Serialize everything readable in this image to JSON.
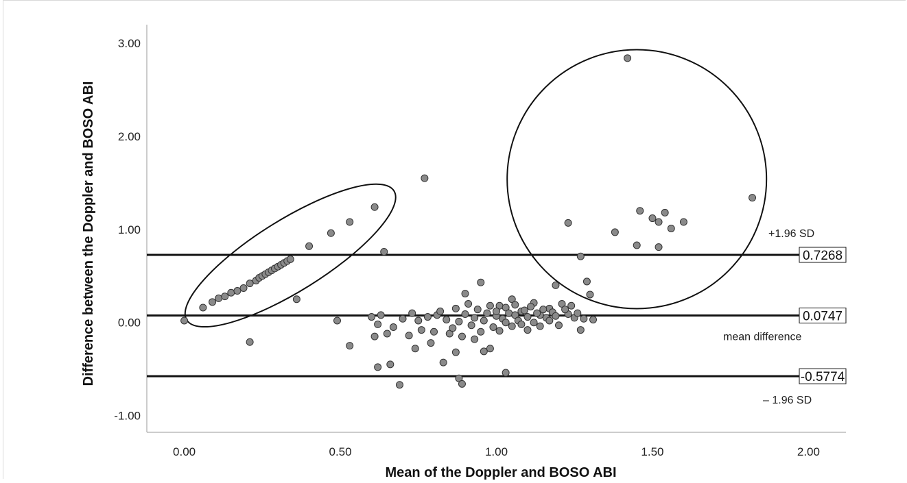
{
  "chart_data": {
    "type": "scatter",
    "title": "",
    "xlabel": "Mean of the Doppler and BOSO ABI",
    "ylabel": "Difference between the Doppler and BOSO ABI",
    "xlim": [
      -0.12,
      2.12
    ],
    "ylim": [
      -1.18,
      3.2
    ],
    "x_ticks": [
      "0.00",
      "0.50",
      "1.00",
      "1.50",
      "2.00"
    ],
    "y_ticks": [
      "-1.00",
      "0.00",
      "1.00",
      "2.00",
      "3.00"
    ],
    "grid": false,
    "reference_lines": [
      {
        "y": 0.7268,
        "label": "0.7268",
        "annotation": "+1.96 SD"
      },
      {
        "y": 0.0747,
        "label": "0.0747",
        "annotation": "mean difference"
      },
      {
        "y": -0.5774,
        "label": "-0.5774",
        "annotation": "– 1.96 SD"
      }
    ],
    "highlight_shapes": [
      {
        "type": "ellipse",
        "cx": 0.34,
        "cy": 0.72,
        "rx": 0.36,
        "ry": 0.18,
        "rotation_deg": -32
      },
      {
        "type": "circle",
        "cx": 1.45,
        "cy": 1.54
      }
    ],
    "points": [
      [
        0.0,
        0.02
      ],
      [
        0.06,
        0.16
      ],
      [
        0.09,
        0.22
      ],
      [
        0.11,
        0.26
      ],
      [
        0.13,
        0.28
      ],
      [
        0.15,
        0.32
      ],
      [
        0.17,
        0.34
      ],
      [
        0.19,
        0.37
      ],
      [
        0.21,
        0.42
      ],
      [
        0.23,
        0.45
      ],
      [
        0.24,
        0.48
      ],
      [
        0.25,
        0.5
      ],
      [
        0.26,
        0.52
      ],
      [
        0.27,
        0.54
      ],
      [
        0.28,
        0.56
      ],
      [
        0.29,
        0.58
      ],
      [
        0.3,
        0.6
      ],
      [
        0.31,
        0.62
      ],
      [
        0.32,
        0.64
      ],
      [
        0.33,
        0.66
      ],
      [
        0.34,
        0.68
      ],
      [
        0.4,
        0.82
      ],
      [
        0.47,
        0.96
      ],
      [
        0.53,
        1.08
      ],
      [
        0.61,
        1.24
      ],
      [
        0.77,
        1.55
      ],
      [
        0.21,
        -0.21
      ],
      [
        0.36,
        0.25
      ],
      [
        0.49,
        0.02
      ],
      [
        0.64,
        0.76
      ],
      [
        0.53,
        -0.25
      ],
      [
        0.61,
        -0.15
      ],
      [
        0.62,
        -0.48
      ],
      [
        0.66,
        -0.45
      ],
      [
        0.69,
        -0.67
      ],
      [
        0.74,
        -0.28
      ],
      [
        0.79,
        -0.22
      ],
      [
        0.81,
        0.08
      ],
      [
        0.83,
        -0.43
      ],
      [
        0.85,
        -0.12
      ],
      [
        0.87,
        -0.32
      ],
      [
        0.88,
        -0.6
      ],
      [
        0.89,
        -0.66
      ],
      [
        0.9,
        0.31
      ],
      [
        0.93,
        -0.18
      ],
      [
        0.95,
        0.43
      ],
      [
        0.96,
        -0.31
      ],
      [
        0.98,
        -0.28
      ],
      [
        1.01,
        0.18
      ],
      [
        1.03,
        -0.54
      ],
      [
        1.05,
        0.25
      ],
      [
        1.08,
        0.12
      ],
      [
        1.1,
        -0.08
      ],
      [
        1.12,
        0.21
      ],
      [
        1.14,
        0.08
      ],
      [
        1.17,
        0.15
      ],
      [
        1.19,
        0.4
      ],
      [
        1.21,
        0.2
      ],
      [
        1.23,
        0.09
      ],
      [
        1.25,
        0.05
      ],
      [
        1.27,
        -0.08
      ],
      [
        1.29,
        0.44
      ],
      [
        1.3,
        0.3
      ],
      [
        1.31,
        0.03
      ],
      [
        1.27,
        0.71
      ],
      [
        1.23,
        1.07
      ],
      [
        1.38,
        0.97
      ],
      [
        1.42,
        2.84
      ],
      [
        1.45,
        0.83
      ],
      [
        1.46,
        1.2
      ],
      [
        1.5,
        1.12
      ],
      [
        1.52,
        0.81
      ],
      [
        1.52,
        1.08
      ],
      [
        1.54,
        1.18
      ],
      [
        1.56,
        1.01
      ],
      [
        1.6,
        1.08
      ],
      [
        1.82,
        1.34
      ],
      [
        0.6,
        0.06
      ],
      [
        0.62,
        -0.02
      ],
      [
        0.63,
        0.08
      ],
      [
        0.65,
        -0.12
      ],
      [
        0.67,
        -0.05
      ],
      [
        0.7,
        0.04
      ],
      [
        0.72,
        -0.14
      ],
      [
        0.73,
        0.1
      ],
      [
        0.75,
        0.02
      ],
      [
        0.76,
        -0.08
      ],
      [
        0.78,
        0.06
      ],
      [
        0.8,
        -0.1
      ],
      [
        0.82,
        0.12
      ],
      [
        0.84,
        0.03
      ],
      [
        0.86,
        -0.06
      ],
      [
        0.87,
        0.15
      ],
      [
        0.88,
        0.01
      ],
      [
        0.89,
        -0.15
      ],
      [
        0.9,
        0.09
      ],
      [
        0.91,
        0.2
      ],
      [
        0.92,
        -0.03
      ],
      [
        0.93,
        0.05
      ],
      [
        0.94,
        0.14
      ],
      [
        0.95,
        -0.1
      ],
      [
        0.96,
        0.02
      ],
      [
        0.97,
        0.1
      ],
      [
        0.98,
        0.18
      ],
      [
        0.99,
        -0.05
      ],
      [
        1.0,
        0.07
      ],
      [
        1.0,
        0.12
      ],
      [
        1.01,
        -0.09
      ],
      [
        1.02,
        0.04
      ],
      [
        1.03,
        0.16
      ],
      [
        1.03,
        0.0
      ],
      [
        1.04,
        0.1
      ],
      [
        1.05,
        -0.04
      ],
      [
        1.06,
        0.08
      ],
      [
        1.06,
        0.19
      ],
      [
        1.07,
        0.02
      ],
      [
        1.08,
        -0.02
      ],
      [
        1.09,
        0.13
      ],
      [
        1.1,
        0.06
      ],
      [
        1.11,
        0.17
      ],
      [
        1.12,
        0.0
      ],
      [
        1.13,
        0.1
      ],
      [
        1.14,
        -0.04
      ],
      [
        1.15,
        0.14
      ],
      [
        1.16,
        0.05
      ],
      [
        1.17,
        0.02
      ],
      [
        1.18,
        0.11
      ],
      [
        1.19,
        0.07
      ],
      [
        1.2,
        -0.03
      ],
      [
        1.22,
        0.14
      ],
      [
        1.24,
        0.18
      ],
      [
        1.26,
        0.1
      ],
      [
        1.28,
        0.04
      ]
    ]
  }
}
